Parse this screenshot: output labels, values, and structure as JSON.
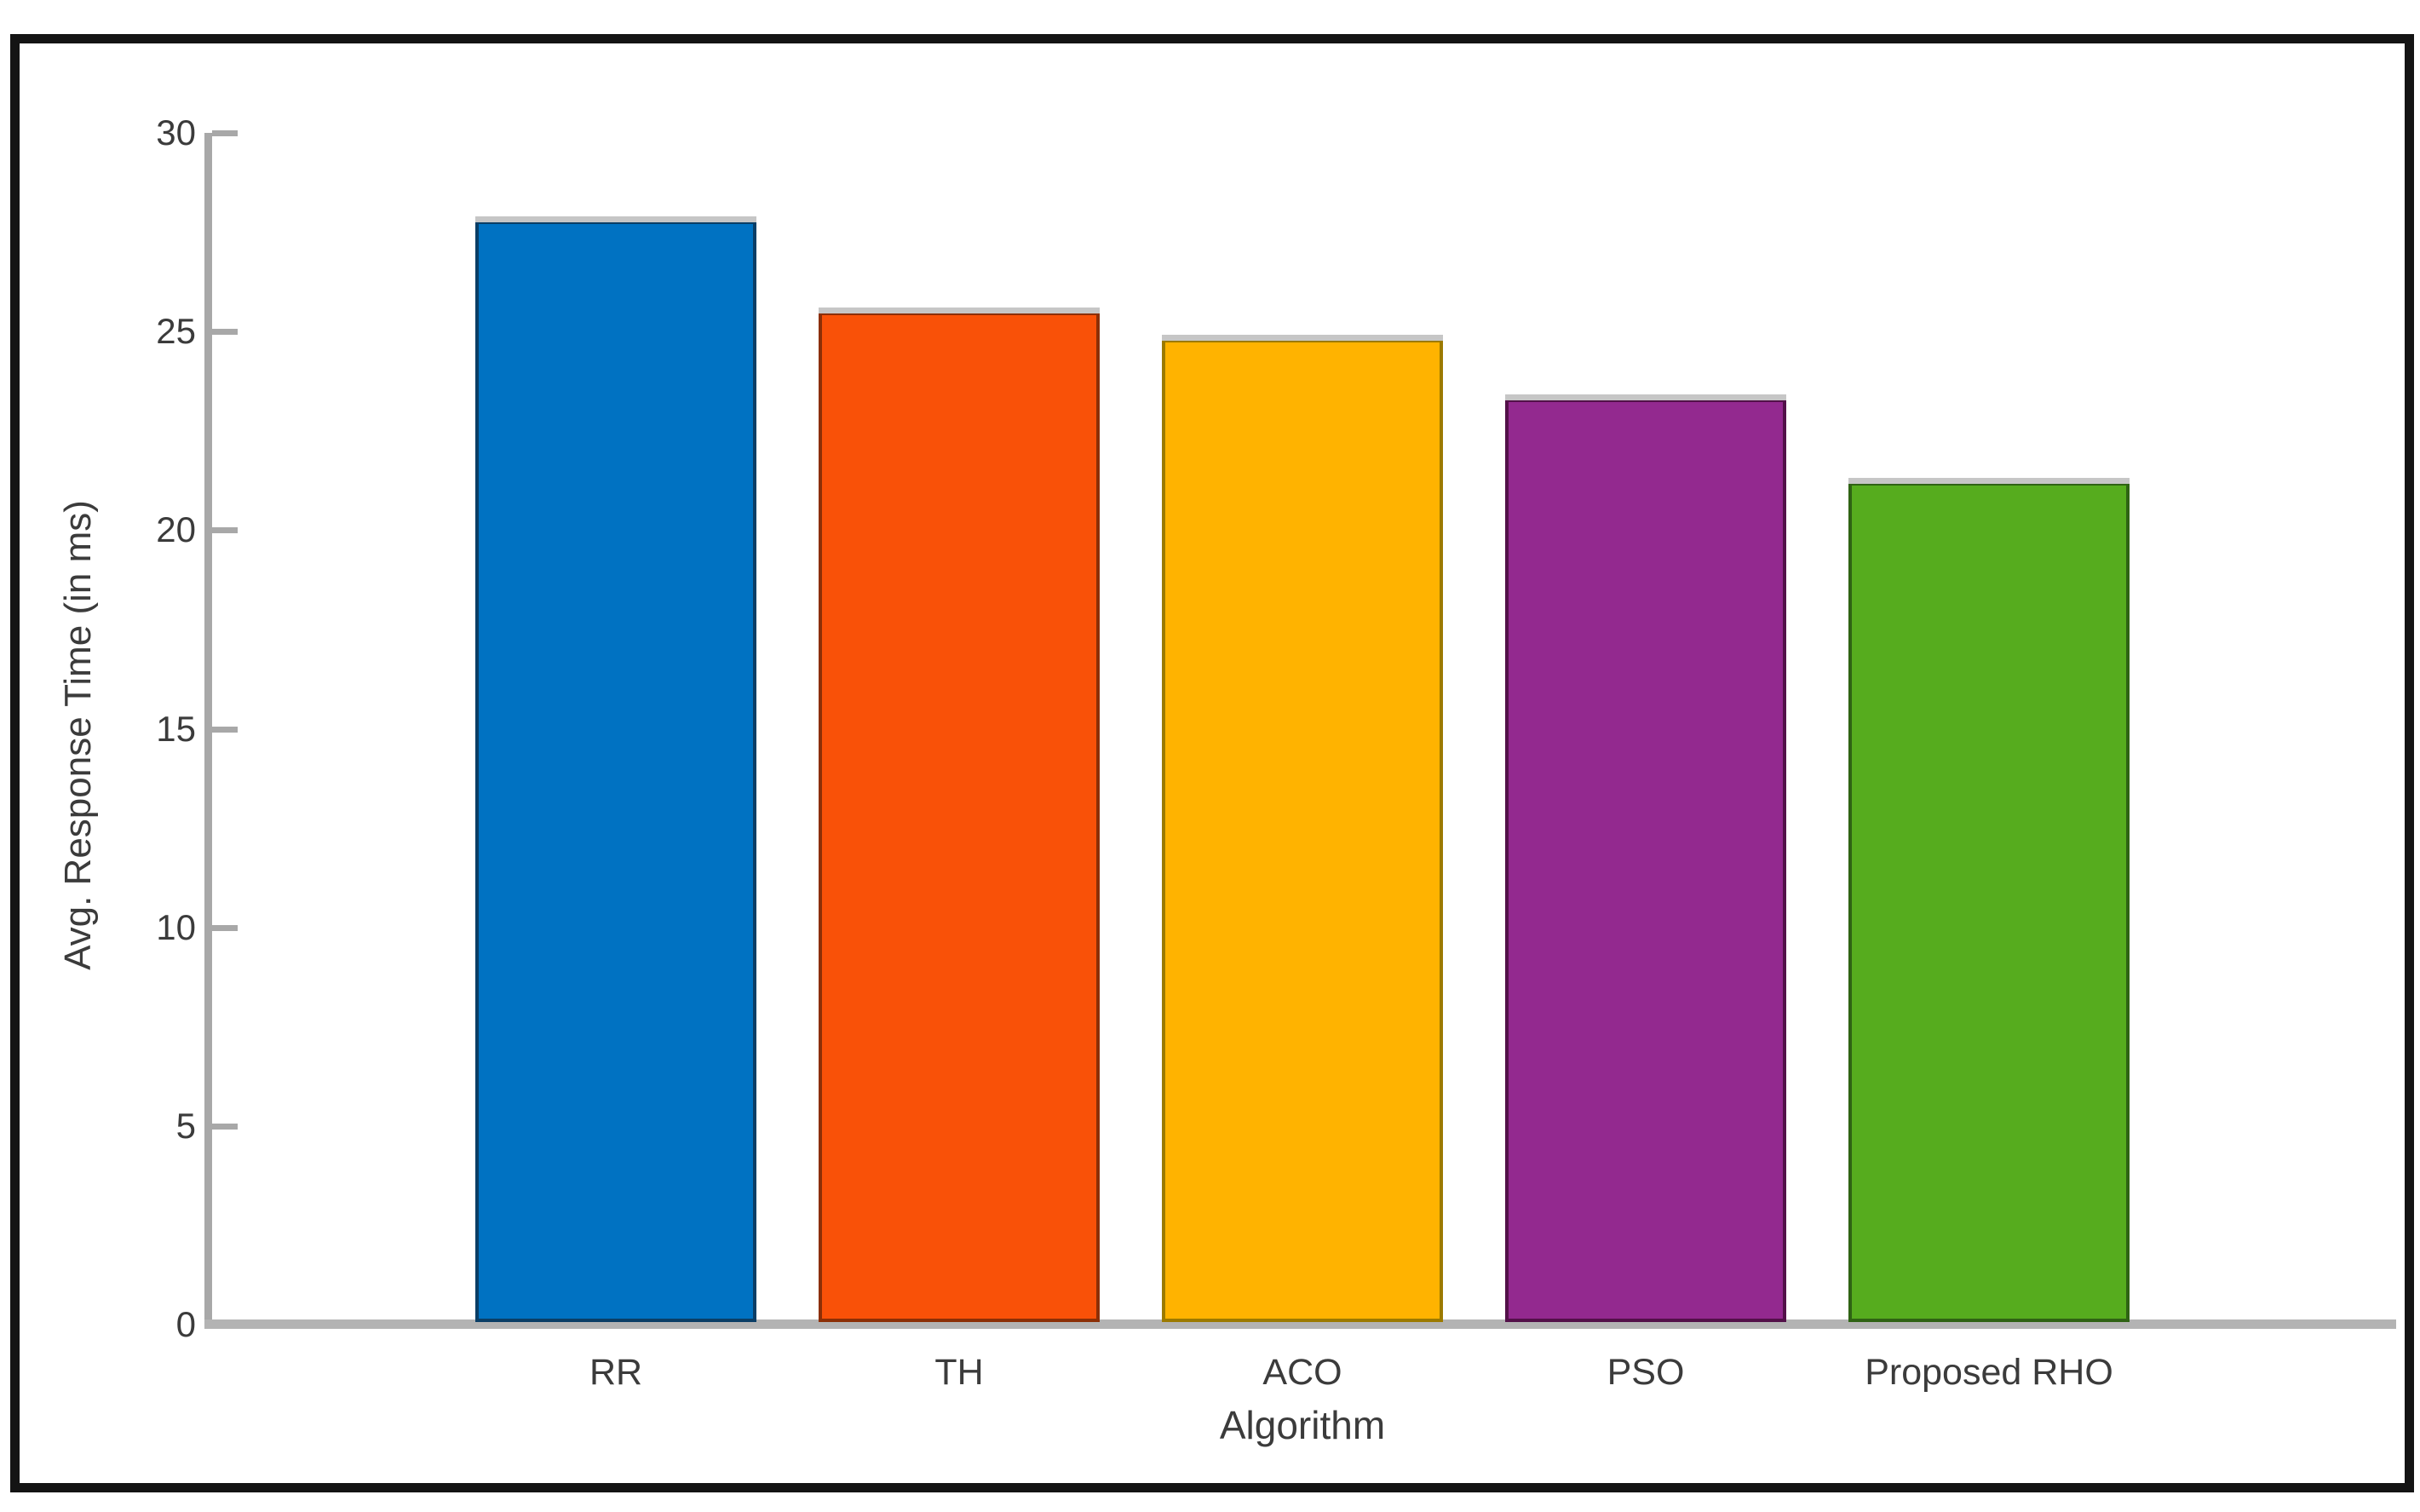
{
  "figure": {
    "background_color": "#ffffff",
    "frame_color": "#141414",
    "axis_color": "#a8a8a8",
    "text_color": "#3b3b3b"
  },
  "chart_data": {
    "type": "bar",
    "title": "",
    "xlabel": "Algorithm",
    "ylabel": "Avg. Response Time (in ms)",
    "categories": [
      "RR",
      "TH",
      "ACO",
      "PSO",
      "Proposed RHO"
    ],
    "values": [
      27.8,
      25.5,
      24.8,
      23.3,
      21.2
    ],
    "bar_colors": [
      "#0072C2",
      "#F95108",
      "#FFB300",
      "#93298F",
      "#56AC1E"
    ],
    "bar_edge_colors": [
      "#0a3e66",
      "#8c2f06",
      "#9c7a00",
      "#531049",
      "#2f6314"
    ],
    "ylim": [
      0,
      30
    ],
    "yticks": [
      0,
      5,
      10,
      15,
      20,
      25,
      30
    ],
    "grid": "off",
    "legend_position": "none",
    "tick_direction": "in"
  }
}
